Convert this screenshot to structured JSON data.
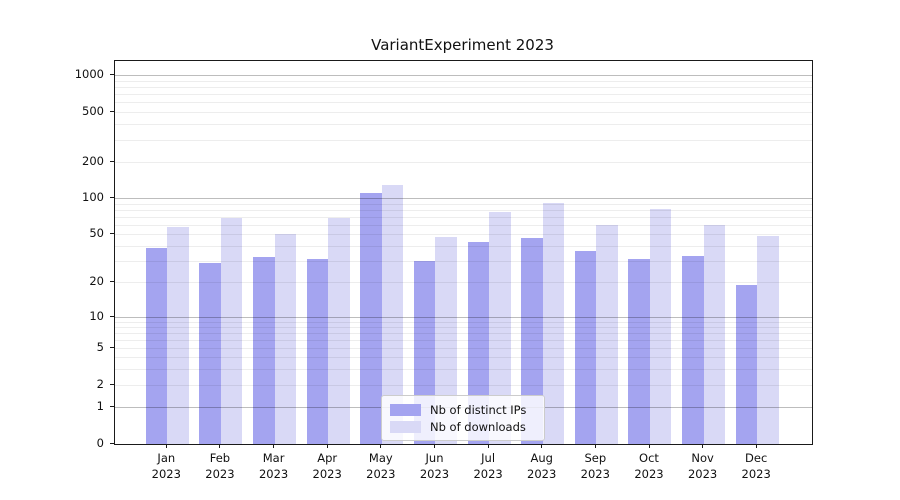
{
  "chart_data": {
    "type": "bar",
    "title": "VariantExperiment 2023",
    "categories": [
      "Jan",
      "Feb",
      "Mar",
      "Apr",
      "May",
      "Jun",
      "Jul",
      "Aug",
      "Sep",
      "Oct",
      "Nov",
      "Dec"
    ],
    "category_year": "2023",
    "series": [
      {
        "name": "Nb of distinct IPs",
        "color": "#a4a4f0",
        "values": [
          38,
          29,
          32,
          31,
          110,
          30,
          43,
          46,
          36,
          31,
          33,
          19
        ]
      },
      {
        "name": "Nb of downloads",
        "color": "#d9d9f6",
        "values": [
          57,
          68,
          50,
          68,
          128,
          47,
          77,
          91,
          59,
          81,
          60,
          48
        ]
      }
    ],
    "xlabel": "",
    "ylabel": "",
    "yscale": "symlog",
    "yticks": [
      0,
      1,
      2,
      5,
      10,
      20,
      50,
      100,
      200,
      500,
      1000
    ],
    "ytick_labels": [
      "0",
      "1",
      "2",
      "5",
      "10",
      "20",
      "50",
      "100",
      "200",
      "500",
      "1000"
    ],
    "ylim": [
      0,
      1400
    ],
    "grid": "both",
    "legend_position": "lower center"
  }
}
